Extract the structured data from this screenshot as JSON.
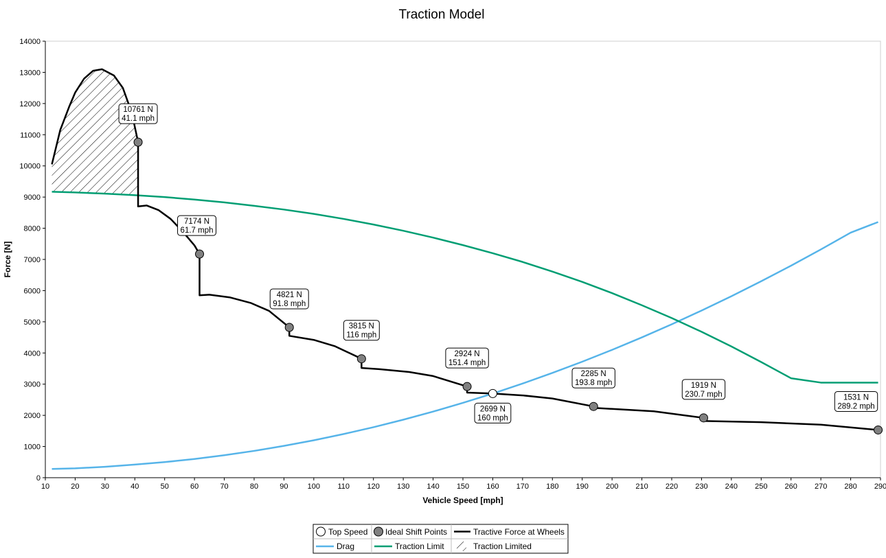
{
  "chart_data": {
    "type": "line",
    "title": "Traction Model",
    "xlabel": "Vehicle Speed [mph]",
    "ylabel": "Force [N]",
    "xlim": [
      10,
      290
    ],
    "ylim": [
      0,
      14000
    ],
    "x_ticks": [
      10,
      20,
      30,
      40,
      50,
      60,
      70,
      80,
      90,
      100,
      110,
      120,
      130,
      140,
      150,
      160,
      170,
      180,
      190,
      200,
      210,
      220,
      230,
      240,
      250,
      260,
      270,
      280,
      290
    ],
    "y_ticks": [
      0,
      1000,
      2000,
      3000,
      4000,
      5000,
      6000,
      7000,
      8000,
      9000,
      10000,
      11000,
      12000,
      13000,
      14000
    ],
    "grid": false,
    "colors": {
      "tractive": "#000000",
      "drag": "#56b4e9",
      "traction_limit": "#009e73",
      "shift_point": "#808080",
      "top_speed": "#ffffff"
    },
    "series": [
      {
        "name": "Tractive Force at Wheels",
        "x": [
          12.2,
          15,
          18,
          20,
          23,
          26,
          29,
          30,
          33,
          36,
          39,
          41.1,
          41.1,
          44,
          48,
          52,
          56,
          60,
          61.7,
          61.7,
          65,
          72,
          79,
          85,
          91.8,
          91.8,
          100,
          107,
          116,
          116,
          122,
          132,
          140,
          151.4,
          151.4,
          160,
          170,
          180,
          193.8,
          193.8,
          214,
          230.7,
          230.7,
          250,
          270,
          289.2
        ],
        "y": [
          10050,
          11150,
          11900,
          12350,
          12800,
          13050,
          13100,
          13050,
          12900,
          12500,
          11700,
          10761,
          8700,
          8730,
          8580,
          8300,
          7900,
          7450,
          7174,
          5850,
          5870,
          5780,
          5600,
          5350,
          4821,
          4550,
          4420,
          4220,
          3815,
          3520,
          3480,
          3390,
          3260,
          2924,
          2730,
          2699,
          2640,
          2540,
          2285,
          2240,
          2130,
          1919,
          1820,
          1780,
          1700,
          1531
        ]
      },
      {
        "name": "Drag",
        "x": [
          12.2,
          20,
          30,
          40,
          50,
          60,
          70,
          80,
          90,
          100,
          110,
          120,
          130,
          140,
          150,
          160,
          170,
          180,
          190,
          200,
          210,
          220,
          230,
          240,
          250,
          260,
          270,
          280,
          289.2
        ],
        "y": [
          280,
          300,
          350,
          420,
          500,
          600,
          720,
          860,
          1020,
          1200,
          1400,
          1620,
          1860,
          2120,
          2400,
          2699,
          3020,
          3360,
          3720,
          4100,
          4500,
          4920,
          5360,
          5820,
          6300,
          6800,
          7320,
          7860,
          8200
        ]
      },
      {
        "name": "Traction Limit",
        "x": [
          12.2,
          20,
          30,
          40,
          50,
          60,
          70,
          80,
          90,
          100,
          110,
          120,
          130,
          140,
          150,
          160,
          170,
          180,
          190,
          200,
          210,
          220,
          230,
          240,
          250,
          260,
          270,
          280,
          289.2
        ],
        "y": [
          9170,
          9150,
          9110,
          9060,
          9000,
          8920,
          8830,
          8720,
          8600,
          8460,
          8300,
          8120,
          7920,
          7700,
          7460,
          7200,
          6920,
          6610,
          6280,
          5920,
          5530,
          5120,
          4680,
          4210,
          3710,
          3190,
          3050,
          3050,
          3050
        ]
      }
    ],
    "traction_limited_region": {
      "name": "Traction Limited",
      "x_range": [
        12.2,
        41.1
      ]
    },
    "shift_points": {
      "name": "Ideal Shift Points",
      "points": [
        {
          "x": 41.1,
          "y": 10761,
          "label_force": "10761 N",
          "label_speed": "41.1 mph"
        },
        {
          "x": 61.7,
          "y": 7174,
          "label_force": "7174 N",
          "label_speed": "61.7 mph"
        },
        {
          "x": 91.8,
          "y": 4821,
          "label_force": "4821 N",
          "label_speed": "91.8 mph"
        },
        {
          "x": 116,
          "y": 3815,
          "label_force": "3815 N",
          "label_speed": "116 mph"
        },
        {
          "x": 151.4,
          "y": 2924,
          "label_force": "2924 N",
          "label_speed": "151.4 mph"
        },
        {
          "x": 193.8,
          "y": 2285,
          "label_force": "2285 N",
          "label_speed": "193.8 mph"
        },
        {
          "x": 230.7,
          "y": 1919,
          "label_force": "1919 N",
          "label_speed": "230.7 mph"
        },
        {
          "x": 289.2,
          "y": 1531,
          "label_force": "1531 N",
          "label_speed": "289.2 mph"
        }
      ]
    },
    "top_speed": {
      "name": "Top Speed",
      "x": 160,
      "y": 2699,
      "label_force": "2699 N",
      "label_speed": "160 mph"
    },
    "legend": {
      "placement": "bottom-center",
      "entries": [
        "Top Speed",
        "Ideal Shift Points",
        "Tractive Force at Wheels",
        "Drag",
        "Traction Limit",
        "Traction Limited"
      ]
    }
  }
}
